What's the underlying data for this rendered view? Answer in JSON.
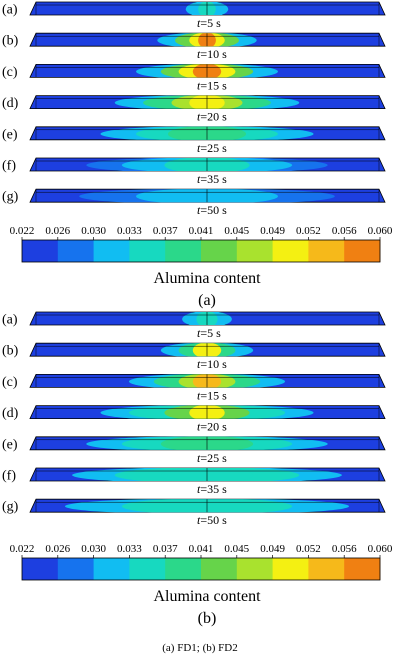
{
  "colorbar_ticks": [
    "0.022",
    "0.026",
    "0.030",
    "0.033",
    "0.037",
    "0.041",
    "0.045",
    "0.049",
    "0.052",
    "0.056",
    "0.060"
  ],
  "colormap": [
    "#1d3fe0",
    "#1673ee",
    "#11bdf2",
    "#17d9c0",
    "#2bd88a",
    "#66d44a",
    "#a9e22e",
    "#f4f012",
    "#f6b91a",
    "#f08012"
  ],
  "legend_label": "Alumina content",
  "panels": [
    {
      "id": "a",
      "label": "(a)",
      "rows": [
        {
          "letter": "(a)",
          "time": "5 s",
          "plume": [
            {
              "spread": 0.06,
              "c": 2
            },
            {
              "spread": 0.025,
              "c": 3
            }
          ]
        },
        {
          "letter": "(b)",
          "time": "10 s",
          "plume": [
            {
              "spread": 0.14,
              "c": 2
            },
            {
              "spread": 0.09,
              "c": 5
            },
            {
              "spread": 0.05,
              "c": 7
            },
            {
              "spread": 0.025,
              "c": 9
            }
          ]
        },
        {
          "letter": "(c)",
          "time": "15 s",
          "plume": [
            {
              "spread": 0.2,
              "c": 2
            },
            {
              "spread": 0.13,
              "c": 5
            },
            {
              "spread": 0.08,
              "c": 7
            },
            {
              "spread": 0.04,
              "c": 9
            }
          ]
        },
        {
          "letter": "(d)",
          "time": "20 s",
          "plume": [
            {
              "spread": 0.26,
              "c": 2
            },
            {
              "spread": 0.18,
              "c": 4
            },
            {
              "spread": 0.1,
              "c": 6
            },
            {
              "spread": 0.05,
              "c": 7
            }
          ]
        },
        {
          "letter": "(e)",
          "time": "25 s",
          "plume": [
            {
              "spread": 0.3,
              "c": 2
            },
            {
              "spread": 0.2,
              "c": 3
            },
            {
              "spread": 0.11,
              "c": 4
            }
          ]
        },
        {
          "letter": "(f)",
          "time": "35 s",
          "plume": [
            {
              "spread": 0.34,
              "c": 1
            },
            {
              "spread": 0.24,
              "c": 2
            },
            {
              "spread": 0.12,
              "c": 3
            }
          ]
        },
        {
          "letter": "(g)",
          "time": "50 s",
          "plume": [
            {
              "spread": 0.36,
              "c": 1
            },
            {
              "spread": 0.2,
              "c": 2
            }
          ]
        }
      ]
    },
    {
      "id": "b",
      "label": "(b)",
      "rows": [
        {
          "letter": "(a)",
          "time": "5 s",
          "plume": [
            {
              "spread": 0.07,
              "c": 2
            },
            {
              "spread": 0.03,
              "c": 3
            }
          ]
        },
        {
          "letter": "(b)",
          "time": "10 s",
          "plume": [
            {
              "spread": 0.13,
              "c": 2
            },
            {
              "spread": 0.08,
              "c": 4
            },
            {
              "spread": 0.04,
              "c": 7
            }
          ]
        },
        {
          "letter": "(c)",
          "time": "15 s",
          "plume": [
            {
              "spread": 0.22,
              "c": 2
            },
            {
              "spread": 0.15,
              "c": 4
            },
            {
              "spread": 0.08,
              "c": 6
            },
            {
              "spread": 0.04,
              "c": 8
            }
          ]
        },
        {
          "letter": "(d)",
          "time": "20 s",
          "plume": [
            {
              "spread": 0.3,
              "c": 2
            },
            {
              "spread": 0.22,
              "c": 3
            },
            {
              "spread": 0.12,
              "c": 5
            },
            {
              "spread": 0.05,
              "c": 7
            }
          ]
        },
        {
          "letter": "(e)",
          "time": "25 s",
          "plume": [
            {
              "spread": 0.34,
              "c": 2
            },
            {
              "spread": 0.24,
              "c": 3
            },
            {
              "spread": 0.13,
              "c": 4
            }
          ]
        },
        {
          "letter": "(f)",
          "time": "35 s",
          "plume": [
            {
              "spread": 0.38,
              "c": 2
            },
            {
              "spread": 0.26,
              "c": 3
            },
            {
              "spread": 0.13,
              "c": 3
            }
          ]
        },
        {
          "letter": "(g)",
          "time": "50 s",
          "plume": [
            {
              "spread": 0.4,
              "c": 2
            },
            {
              "spread": 0.24,
              "c": 3
            }
          ]
        }
      ]
    }
  ],
  "caption": "(a) FD1; (b) FD2"
}
